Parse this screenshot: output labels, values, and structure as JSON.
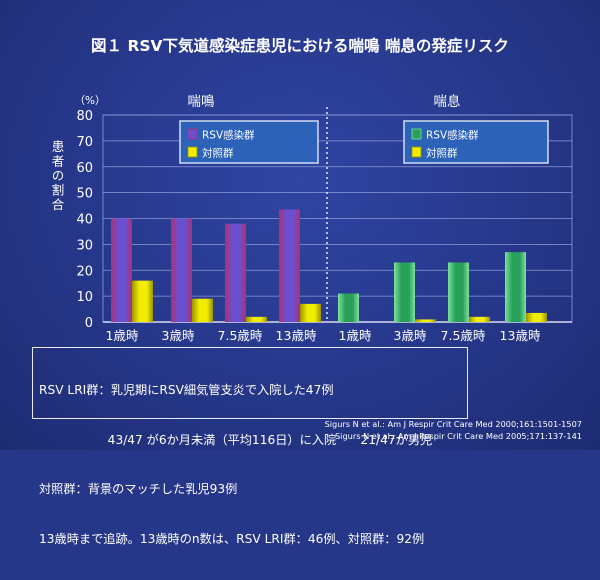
{
  "title": "図１ RSV下気道感染症患児における喘鳴 喘息の発症リスク",
  "chart_data": {
    "type": "bar",
    "ylabel": "患者の割合",
    "yunit": "（%）",
    "ylim": [
      0,
      80
    ],
    "yticks": [
      "0",
      "10",
      "20",
      "30",
      "40",
      "50",
      "60",
      "70",
      "80"
    ],
    "panels": [
      {
        "title": "喘鳴",
        "categories": [
          "1歳時",
          "3歳時",
          "7.5歳時",
          "13歳時"
        ],
        "series": [
          {
            "name": "RSV感染群",
            "values": [
              40,
              40,
              38,
              43.5
            ],
            "color": "#6a4fd0",
            "edge": "#b03070"
          },
          {
            "name": "対照群",
            "values": [
              16,
              9,
              2,
              7
            ],
            "color": "#f2ec00",
            "edge": "#9a9400"
          }
        ]
      },
      {
        "title": "喘息",
        "categories": [
          "",
          "3歳時",
          "7.5歳時",
          "13歳時"
        ],
        "series": [
          {
            "name": "RSV感染群",
            "values": [
              11,
              23,
              23,
              27
            ],
            "color": "#29a05a",
            "edge": "#7fe0a0"
          },
          {
            "name": "対照群",
            "values": [
              0,
              1,
              2,
              3.5
            ],
            "color": "#f2ec00",
            "edge": "#9a9400"
          }
        ]
      }
    ],
    "shared_label": "1歳時"
  },
  "note": {
    "line1": "RSV LRI群：乳児期にRSV細気管支炎で入院した47例",
    "line2": "　　　　　  43/47 が6か月未満（平均116日）に入院　　21/47が男児",
    "line3": "対照群：背景のマッチした乳児93例",
    "line4": "13歳時まで追跡。13歳時のn数は、RSV LRI群：46例、対照群：92例"
  },
  "references": {
    "ref1": "Sigurs N et al.: Am J Respir Crit Care Med 2000;161:1501-1507",
    "ref2": "Sigurs N et al.: Am J Respir Crit Care Med 2005;171:137-141"
  }
}
